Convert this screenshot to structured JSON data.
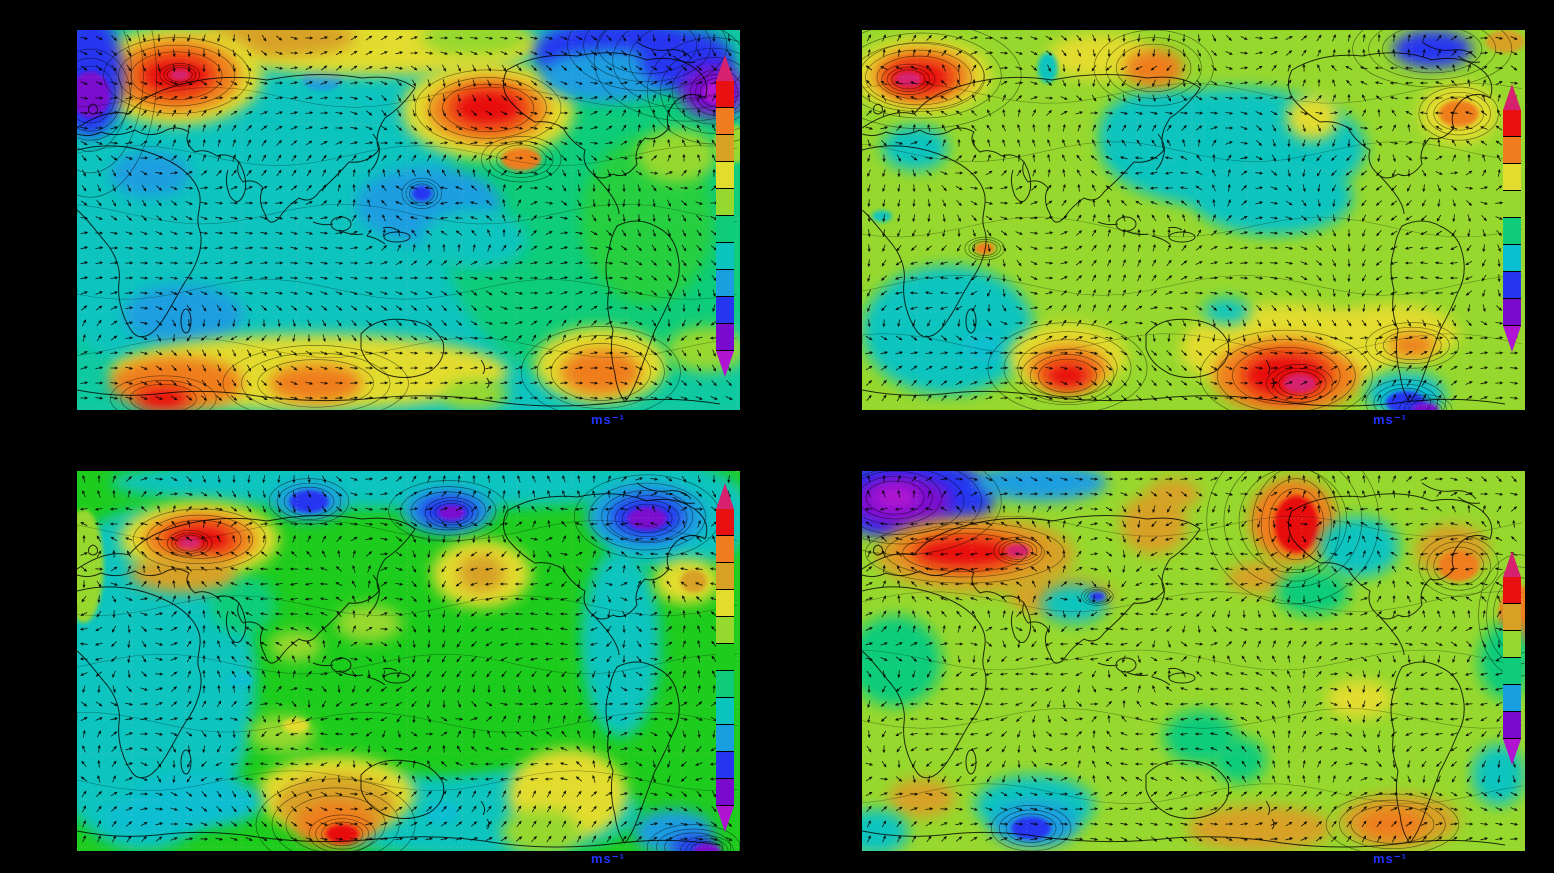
{
  "figure": {
    "background": "#000000",
    "unit_label": "ms⁻¹",
    "unit_label_color": "#2233ff",
    "layout": "2x2 grid of global wind-vector maps, each with its own discrete rainbow colorbar"
  },
  "chart_data": [
    {
      "id": "panel-top-left",
      "position": "top-left",
      "type": "heatmap",
      "subtype": "vector-field-over-filled-contours",
      "region": "global map with coastlines, Africa/Eurasia left, Americas right",
      "unit": "ms⁻¹",
      "description": "Teal/cyan background; red speed maxima over NW Eurasia and NW Pacific; blue minimum over Maritime Continent; yellow-orange band along southern ocean; blue/purple polar patches top corners",
      "colorbar": {
        "orientation": "vertical",
        "over_color": "#d6216e",
        "under_color": "#b013d1",
        "levels": [
          "#e81010",
          "#ef7d1f",
          "#d7a126",
          "#e2dc2d",
          "#96d82d",
          "#0ecc7a",
          "#0cc4be",
          "#1b9ee0",
          "#2535f0",
          "#7a0ace"
        ],
        "tick_labels_visible": false
      },
      "base_color": "#0fc9a0",
      "features": [
        [
          0.5,
          0.5,
          0.6,
          0.55,
          "#0cc4be"
        ],
        [
          0.8,
          0.5,
          0.25,
          0.45,
          "#0ecc7a"
        ],
        [
          0.86,
          0.5,
          0.1,
          0.22,
          "#27cf3f"
        ],
        [
          0.4,
          0.12,
          0.18,
          0.14,
          "#0cc4be"
        ],
        [
          0.37,
          0.13,
          0.03,
          0.03,
          "#1b9ee0"
        ],
        [
          0.45,
          0.04,
          0.25,
          0.08,
          "#e2dc2d"
        ],
        [
          0.3,
          0.02,
          0.12,
          0.05,
          "#d7a126"
        ],
        [
          0.6,
          0.02,
          0.08,
          0.05,
          "#96d82d"
        ],
        [
          0.15,
          0.12,
          0.13,
          0.13,
          "#e2dc2d"
        ],
        [
          0.15,
          0.12,
          0.095,
          0.095,
          "#ef7d1f"
        ],
        [
          0.15,
          0.12,
          0.055,
          0.05,
          "#e81010"
        ],
        [
          0.155,
          0.118,
          0.015,
          0.015,
          "#d6216e"
        ],
        [
          0.02,
          0.12,
          0.05,
          0.16,
          "#2535f0"
        ],
        [
          0.02,
          0.17,
          0.03,
          0.06,
          "#7a0ace"
        ],
        [
          0.62,
          0.21,
          0.13,
          0.13,
          "#e2dc2d"
        ],
        [
          0.62,
          0.21,
          0.09,
          0.085,
          "#ef7d1f"
        ],
        [
          0.62,
          0.205,
          0.055,
          0.05,
          "#e81010"
        ],
        [
          0.67,
          0.34,
          0.03,
          0.03,
          "#ef7d1f"
        ],
        [
          0.78,
          0.06,
          0.09,
          0.08,
          "#2535f0"
        ],
        [
          0.86,
          0.04,
          0.06,
          0.06,
          "#2535f0"
        ],
        [
          0.8,
          0.12,
          0.1,
          0.07,
          "#1b9ee0"
        ],
        [
          0.92,
          0.08,
          0.07,
          0.08,
          "#2535f0"
        ],
        [
          0.96,
          0.16,
          0.05,
          0.07,
          "#7a0ace"
        ],
        [
          0.965,
          0.165,
          0.02,
          0.03,
          "#b013d1"
        ],
        [
          0.905,
          0.33,
          0.06,
          0.07,
          "#96d82d"
        ],
        [
          0.99,
          0.3,
          0.03,
          0.05,
          "#96d82d"
        ],
        [
          0.11,
          0.38,
          0.06,
          0.06,
          "#1b9ee0"
        ],
        [
          0.53,
          0.46,
          0.11,
          0.1,
          "#1b9ee0"
        ],
        [
          0.52,
          0.43,
          0.015,
          0.02,
          "#2535f0"
        ],
        [
          0.6,
          0.55,
          0.08,
          0.08,
          "#0cc4be"
        ],
        [
          0.16,
          0.75,
          0.09,
          0.08,
          "#1b9ee0"
        ],
        [
          0.35,
          0.9,
          0.3,
          0.1,
          "#e2dc2d"
        ],
        [
          0.15,
          0.93,
          0.1,
          0.07,
          "#ef7d1f"
        ],
        [
          0.13,
          0.97,
          0.04,
          0.03,
          "#e81010"
        ],
        [
          0.36,
          0.93,
          0.07,
          0.05,
          "#ef7d1f"
        ],
        [
          0.79,
          0.88,
          0.1,
          0.1,
          "#e2dc2d"
        ],
        [
          0.79,
          0.9,
          0.06,
          0.06,
          "#ef7d1f"
        ],
        [
          0.6,
          0.96,
          0.05,
          0.04,
          "#96d82d"
        ],
        [
          0.95,
          0.84,
          0.06,
          0.06,
          "#96d82d"
        ]
      ]
    },
    {
      "id": "panel-top-right",
      "position": "top-right",
      "type": "heatmap",
      "subtype": "vector-field-over-filled-contours",
      "region": "global map with coastlines, Africa/Eurasia left, Americas right",
      "unit": "ms⁻¹",
      "description": "Yellow-green background; crimson-cored maxima over NW Eurasia and south of Australia; teal lobes over N Pacific and southern Africa; blue/purple patch at bottom-right",
      "colorbar": {
        "orientation": "vertical",
        "over_color": "#d6216e",
        "under_color": "#b013d1",
        "levels": [
          "#e81010",
          "#ef7d1f",
          "#e2dc2d",
          "#96d82d",
          "#0ecc7a",
          "#0abfd0",
          "#2535f0",
          "#7a0ace"
        ],
        "tick_labels_visible": false
      },
      "base_color": "#96d82d",
      "features": [
        [
          0.56,
          0.31,
          0.2,
          0.16,
          "#0cc4be"
        ],
        [
          0.62,
          0.44,
          0.12,
          0.1,
          "#0cc4be"
        ],
        [
          0.44,
          0.26,
          0.08,
          0.1,
          "#0cc4be"
        ],
        [
          0.68,
          0.23,
          0.04,
          0.06,
          "#e2dc2d"
        ],
        [
          0.13,
          0.79,
          0.13,
          0.17,
          "#0cc4be"
        ],
        [
          0.185,
          0.835,
          0.035,
          0.04,
          "#0abfd0"
        ],
        [
          0.08,
          0.31,
          0.05,
          0.06,
          "#0cc4be"
        ],
        [
          0.09,
          0.12,
          0.105,
          0.1,
          "#e2dc2d"
        ],
        [
          0.09,
          0.12,
          0.075,
          0.07,
          "#ef7d1f"
        ],
        [
          0.085,
          0.125,
          0.05,
          0.045,
          "#e81010"
        ],
        [
          0.07,
          0.13,
          0.02,
          0.02,
          "#d6216e"
        ],
        [
          0.36,
          0.07,
          0.08,
          0.06,
          "#e2dc2d"
        ],
        [
          0.44,
          0.1,
          0.045,
          0.05,
          "#ef7d1f"
        ],
        [
          0.28,
          0.1,
          0.015,
          0.04,
          "#0cc4be"
        ],
        [
          0.86,
          0.05,
          0.06,
          0.05,
          "#2535f0"
        ],
        [
          0.97,
          0.03,
          0.03,
          0.03,
          "#d7a126"
        ],
        [
          0.9,
          0.22,
          0.06,
          0.08,
          "#e2dc2d"
        ],
        [
          0.9,
          0.22,
          0.03,
          0.035,
          "#ef7d1f"
        ],
        [
          0.185,
          0.575,
          0.015,
          0.015,
          "#ef7d1f"
        ],
        [
          0.31,
          0.86,
          0.09,
          0.09,
          "#e2dc2d"
        ],
        [
          0.31,
          0.89,
          0.06,
          0.06,
          "#ef7d1f"
        ],
        [
          0.31,
          0.91,
          0.035,
          0.035,
          "#e81010"
        ],
        [
          0.64,
          0.84,
          0.16,
          0.12,
          "#e2dc2d"
        ],
        [
          0.64,
          0.91,
          0.11,
          0.1,
          "#ef7d1f"
        ],
        [
          0.64,
          0.91,
          0.065,
          0.06,
          "#e81010"
        ],
        [
          0.66,
          0.93,
          0.025,
          0.025,
          "#d6216e"
        ],
        [
          0.8,
          0.8,
          0.1,
          0.08,
          "#e2dc2d"
        ],
        [
          0.83,
          0.83,
          0.035,
          0.03,
          "#ef7d1f"
        ],
        [
          0.82,
          0.96,
          0.06,
          0.06,
          "#0abfd0"
        ],
        [
          0.82,
          0.98,
          0.03,
          0.03,
          "#2535f0"
        ],
        [
          0.85,
          1.0,
          0.02,
          0.02,
          "#7a0ace"
        ],
        [
          0.55,
          0.74,
          0.035,
          0.035,
          "#0cc4be"
        ],
        [
          0.03,
          0.49,
          0.015,
          0.015,
          "#0cc4be"
        ]
      ]
    },
    {
      "id": "panel-bottom-left",
      "position": "bottom-left",
      "type": "heatmap",
      "subtype": "vector-field-over-filled-contours",
      "region": "global map with coastlines, Africa/Eurasia left, Americas right",
      "unit": "ms⁻¹",
      "description": "Bright green background with teal left third; red maximum over NW Eurasia; blue/purple minima along top (N Pacific, N America); gold spot mid-Pacific; orange maximum south of Australia; purple corner bottom-right",
      "colorbar": {
        "orientation": "vertical",
        "over_color": "#d6216e",
        "under_color": "#b013d1",
        "levels": [
          "#e81010",
          "#ef7d1f",
          "#d7a126",
          "#e2dc2d",
          "#96d82d",
          "#1ecc1e",
          "#0ecc7a",
          "#0cc4be",
          "#1b9ee0",
          "#2535f0",
          "#7a0ace"
        ],
        "tick_labels_visible": false
      },
      "base_color": "#1ecc1e",
      "features": [
        [
          0.1,
          0.55,
          0.17,
          0.45,
          "#0cc4be"
        ],
        [
          0.5,
          0.03,
          0.45,
          0.07,
          "#0cc4be"
        ],
        [
          0.9,
          0.12,
          0.12,
          0.14,
          "#0cc4be"
        ],
        [
          0.82,
          0.45,
          0.06,
          0.25,
          "#0cc4be"
        ],
        [
          0.6,
          0.9,
          0.25,
          0.12,
          "#0cc4be"
        ],
        [
          0.01,
          0.25,
          0.03,
          0.15,
          "#96d82d"
        ],
        [
          0.25,
          0.35,
          0.05,
          0.08,
          "#0ecc7a"
        ],
        [
          0.55,
          0.55,
          0.2,
          0.25,
          "#1ecc1e"
        ],
        [
          0.185,
          0.18,
          0.12,
          0.1,
          "#e2dc2d"
        ],
        [
          0.185,
          0.18,
          0.085,
          0.07,
          "#ef7d1f"
        ],
        [
          0.185,
          0.18,
          0.05,
          0.04,
          "#e81010"
        ],
        [
          0.17,
          0.19,
          0.017,
          0.017,
          "#d6216e"
        ],
        [
          0.16,
          0.27,
          0.08,
          0.05,
          "#d7a126"
        ],
        [
          0.35,
          0.08,
          0.055,
          0.05,
          "#1b9ee0"
        ],
        [
          0.35,
          0.08,
          0.03,
          0.03,
          "#2535f0"
        ],
        [
          0.56,
          0.105,
          0.07,
          0.06,
          "#1b9ee0"
        ],
        [
          0.56,
          0.105,
          0.045,
          0.04,
          "#2535f0"
        ],
        [
          0.565,
          0.11,
          0.02,
          0.02,
          "#7a0ace"
        ],
        [
          0.86,
          0.12,
          0.09,
          0.09,
          "#1b9ee0"
        ],
        [
          0.86,
          0.12,
          0.055,
          0.055,
          "#2535f0"
        ],
        [
          0.86,
          0.125,
          0.03,
          0.03,
          "#7a0ace"
        ],
        [
          0.61,
          0.27,
          0.075,
          0.09,
          "#e2dc2d"
        ],
        [
          0.61,
          0.27,
          0.035,
          0.05,
          "#d7a126"
        ],
        [
          0.92,
          0.29,
          0.05,
          0.06,
          "#e2dc2d"
        ],
        [
          0.93,
          0.29,
          0.02,
          0.03,
          "#d7a126"
        ],
        [
          0.44,
          0.4,
          0.05,
          0.05,
          "#96d82d"
        ],
        [
          0.33,
          0.46,
          0.04,
          0.04,
          "#96d82d"
        ],
        [
          0.31,
          0.69,
          0.05,
          0.05,
          "#96d82d"
        ],
        [
          0.33,
          0.67,
          0.02,
          0.02,
          "#e2dc2d"
        ],
        [
          0.74,
          0.85,
          0.09,
          0.12,
          "#e2dc2d"
        ],
        [
          0.7,
          0.95,
          0.06,
          0.06,
          "#96d82d"
        ],
        [
          0.39,
          0.85,
          0.12,
          0.1,
          "#e2dc2d"
        ],
        [
          0.39,
          0.88,
          0.09,
          0.08,
          "#d7a126"
        ],
        [
          0.39,
          0.93,
          0.06,
          0.06,
          "#ef7d1f"
        ],
        [
          0.4,
          0.955,
          0.025,
          0.025,
          "#e81010"
        ],
        [
          0.18,
          0.87,
          0.1,
          0.07,
          "#0abfd0"
        ],
        [
          0.1,
          0.91,
          0.06,
          0.05,
          "#0abfd0"
        ],
        [
          0.55,
          0.9,
          0.025,
          0.03,
          "#0abfd0"
        ],
        [
          0.245,
          0.55,
          0.02,
          0.02,
          "#0abfd0"
        ],
        [
          0.9,
          0.95,
          0.06,
          0.06,
          "#1b9ee0"
        ],
        [
          0.93,
          0.99,
          0.035,
          0.03,
          "#2535f0"
        ],
        [
          0.95,
          1.0,
          0.02,
          0.02,
          "#7a0ace"
        ]
      ]
    },
    {
      "id": "panel-bottom-right",
      "position": "bottom-right",
      "type": "heatmap",
      "subtype": "vector-field-over-filled-contours",
      "region": "global map with coastlines, Africa/Eurasia left, Americas right",
      "unit": "ms⁻¹",
      "description": "Yellow-green background; purple/blue vortex top-left corner; elongated red jet over Eurasia with magenta core; red maximum over N Pacific; orange/gold bands over N America and southern ocean; sky-blue spot south of Australia",
      "colorbar": {
        "orientation": "vertical",
        "over_color": "#d6216e",
        "under_color": "#b013d1",
        "levels": [
          "#e81010",
          "#d7a126",
          "#96d82d",
          "#0ecc7a",
          "#1b9ee0",
          "#7a0ace"
        ],
        "tick_labels_visible": false
      },
      "base_color": "#96d82d",
      "features": [
        [
          0.07,
          0.07,
          0.13,
          0.11,
          "#2535f0"
        ],
        [
          0.06,
          0.08,
          0.075,
          0.07,
          "#7a0ace"
        ],
        [
          0.05,
          0.07,
          0.035,
          0.035,
          "#b013d1"
        ],
        [
          0.27,
          0.03,
          0.1,
          0.05,
          "#1b9ee0"
        ],
        [
          0.17,
          0.22,
          0.15,
          0.1,
          "#d7a126"
        ],
        [
          0.16,
          0.21,
          0.11,
          0.06,
          "#ef7d1f"
        ],
        [
          0.155,
          0.215,
          0.075,
          0.04,
          "#e81010"
        ],
        [
          0.235,
          0.21,
          0.018,
          0.018,
          "#d6216e"
        ],
        [
          0.3,
          0.33,
          0.08,
          0.05,
          "#d7a126"
        ],
        [
          0.44,
          0.14,
          0.05,
          0.08,
          "#d7a126"
        ],
        [
          0.47,
          0.06,
          0.04,
          0.04,
          "#d7a126"
        ],
        [
          0.65,
          0.13,
          0.065,
          0.11,
          "#ef7d1f"
        ],
        [
          0.655,
          0.14,
          0.033,
          0.075,
          "#e81010"
        ],
        [
          0.6,
          0.28,
          0.05,
          0.04,
          "#d7a126"
        ],
        [
          0.68,
          0.32,
          0.055,
          0.06,
          "#0ecc7a"
        ],
        [
          0.75,
          0.2,
          0.06,
          0.08,
          "#0cc4be"
        ],
        [
          0.89,
          0.21,
          0.055,
          0.07,
          "#d7a126"
        ],
        [
          0.9,
          0.25,
          0.03,
          0.04,
          "#ef7d1f"
        ],
        [
          0.99,
          0.38,
          0.03,
          0.08,
          "#ef7d1f"
        ],
        [
          0.97,
          0.5,
          0.04,
          0.1,
          "#0ecc7a"
        ],
        [
          0.05,
          0.5,
          0.07,
          0.12,
          "#0ecc7a"
        ],
        [
          0.32,
          0.35,
          0.05,
          0.05,
          "#0cc4be"
        ],
        [
          0.355,
          0.33,
          0.012,
          0.012,
          "#2535f0"
        ],
        [
          0.51,
          0.7,
          0.055,
          0.07,
          "#0ecc7a"
        ],
        [
          0.57,
          0.76,
          0.04,
          0.06,
          "#0ecc7a"
        ],
        [
          0.26,
          0.88,
          0.09,
          0.08,
          "#0cc4be"
        ],
        [
          0.26,
          0.93,
          0.065,
          0.06,
          "#1b9ee0"
        ],
        [
          0.255,
          0.94,
          0.03,
          0.03,
          "#2535f0"
        ],
        [
          0.09,
          0.86,
          0.05,
          0.05,
          "#d7a126"
        ],
        [
          0.6,
          0.94,
          0.11,
          0.06,
          "#d7a126"
        ],
        [
          0.81,
          0.92,
          0.09,
          0.07,
          "#d7a126"
        ],
        [
          0.8,
          0.93,
          0.05,
          0.04,
          "#ef7d1f"
        ],
        [
          0.02,
          0.95,
          0.05,
          0.06,
          "#0cc4be"
        ],
        [
          0.96,
          0.8,
          0.04,
          0.08,
          "#0cc4be"
        ],
        [
          0.75,
          0.6,
          0.05,
          0.05,
          "#e2dc2d"
        ]
      ]
    }
  ]
}
